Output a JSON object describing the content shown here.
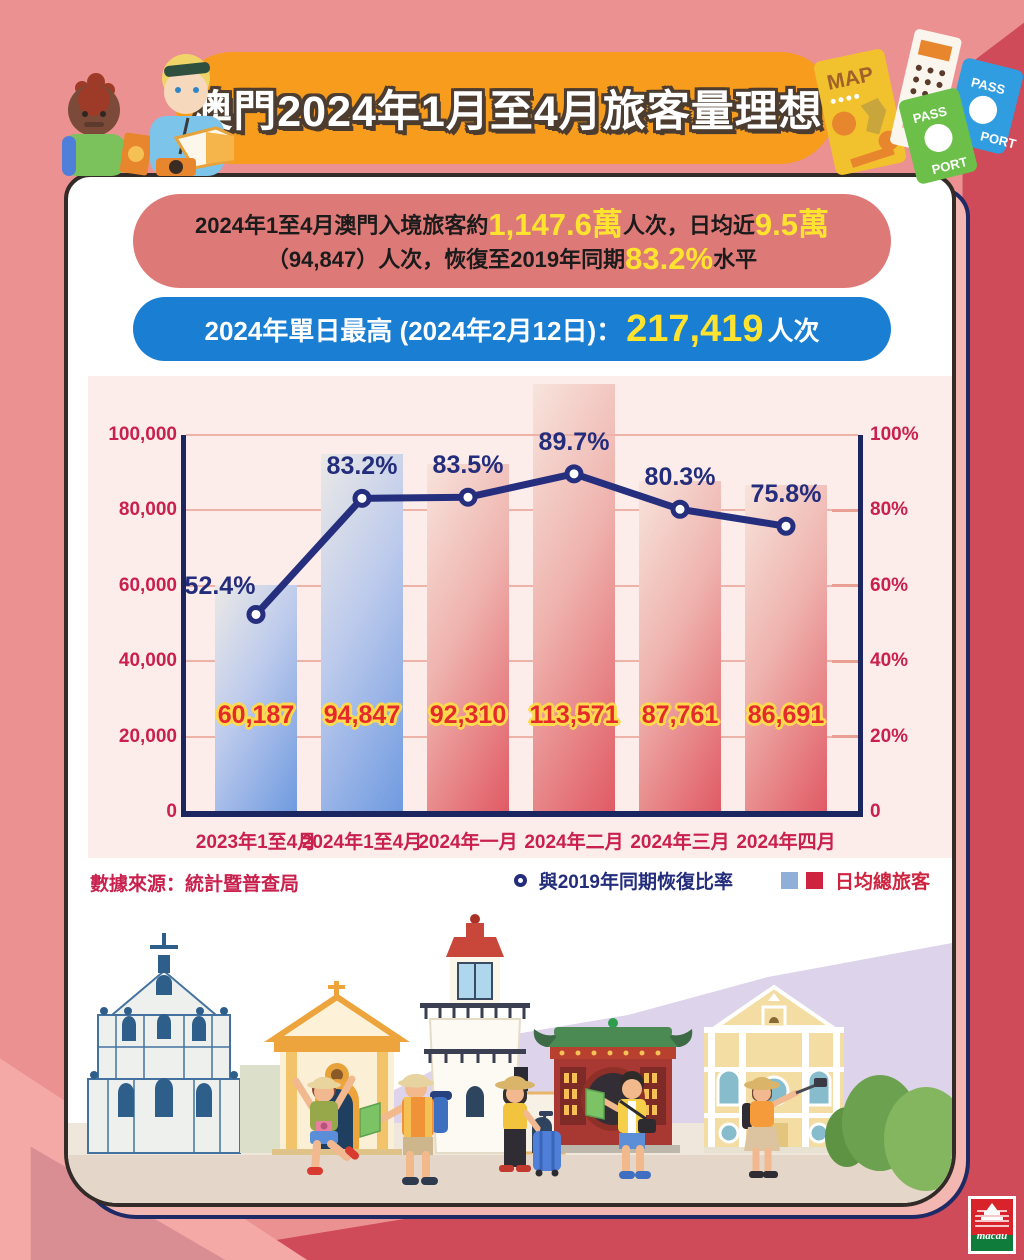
{
  "title": "澳門2024年1月至4月旅客量理想",
  "summary": {
    "l1a": "2024年1至4月澳門入境旅客約",
    "l1b": "1,147.6萬",
    "l1c": "人次，日均近",
    "l1d": "9.5萬",
    "l2a": "（94,847）人次，恢復至2019年同期",
    "l2b": "83.2%",
    "l2c": "水平"
  },
  "highlight": {
    "prefix": "2024年單日最高 (2024年2月12日)：",
    "value": "217,419",
    "suffix": "人次"
  },
  "chart_data": {
    "type": "bar+line",
    "categories": [
      "2023年1至4月",
      "2024年1至4月",
      "2024年一月",
      "2024年二月",
      "2024年三月",
      "2024年四月"
    ],
    "series": [
      {
        "name": "日均總旅客",
        "type": "bar",
        "axis": "left",
        "values": [
          60187,
          94847,
          92310,
          113571,
          87761,
          86691
        ],
        "value_labels": [
          "60,187",
          "94,847",
          "92,310",
          "113,571",
          "87,761",
          "86,691"
        ],
        "bar_styles": [
          "blue",
          "blue",
          "red",
          "red",
          "red",
          "red"
        ]
      },
      {
        "name": "與2019年同期恢復比率",
        "type": "line",
        "axis": "right",
        "values": [
          52.4,
          83.2,
          83.5,
          89.7,
          80.3,
          75.8
        ],
        "value_labels": [
          "52.4%",
          "83.2%",
          "83.5%",
          "89.7%",
          "80.3%",
          "75.8%"
        ]
      }
    ],
    "left_axis": {
      "ticks": [
        "100,000",
        "80,000",
        "60,000",
        "40,000",
        "20,000",
        "0"
      ],
      "max": 100000,
      "min": 0
    },
    "right_axis": {
      "ticks": [
        "100%",
        "80%",
        "60%",
        "40%",
        "20%",
        "0"
      ],
      "max": 100,
      "min": 0
    },
    "grid": true,
    "legend_position": "bottom-right",
    "colors": {
      "bar_blue": "#6f9ae0",
      "bar_red": "#e05a64",
      "line": "#252f7e",
      "axis_text": "#c9204d"
    }
  },
  "footer": {
    "source": "數據來源：統計暨普查局",
    "legend_line": "與2019年同期恢復比率",
    "legend_bar": "日均總旅客"
  },
  "decor": {
    "map": "MAP",
    "pass": "PASS",
    "port": "PORT"
  },
  "logo": {
    "word": "macau"
  }
}
